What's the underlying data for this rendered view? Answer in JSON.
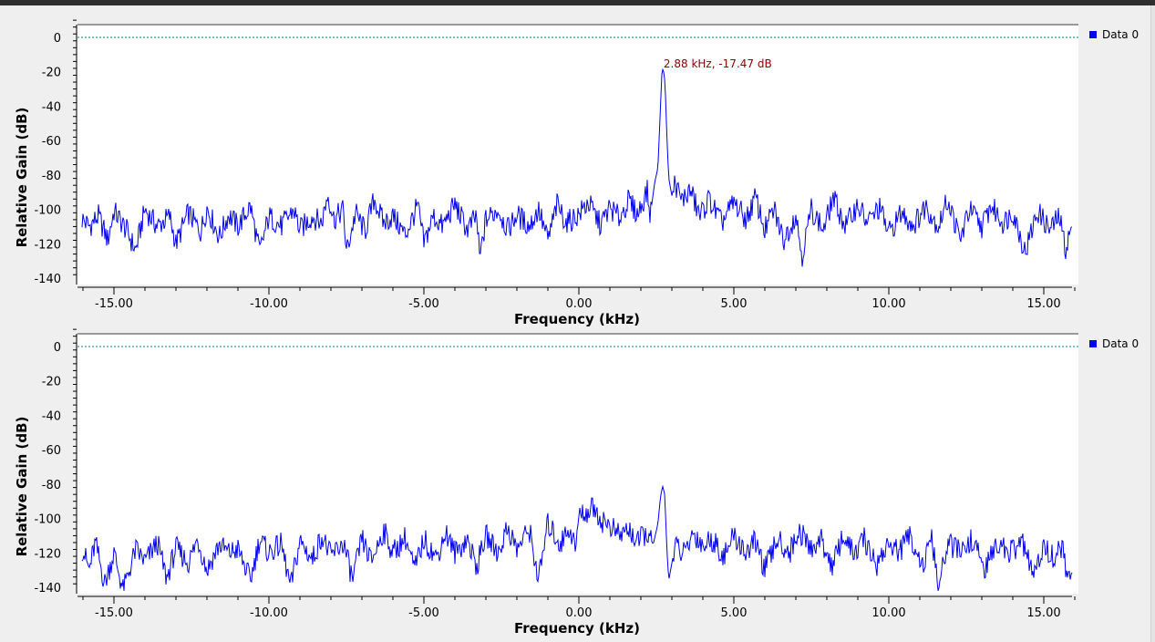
{
  "colors": {
    "series": "#0000ee",
    "reference_line": "#00808a",
    "marker": "#8b0000"
  },
  "chart_data": [
    {
      "type": "line",
      "xlabel": "Frequency (kHz)",
      "ylabel": "Relative Gain (dB)",
      "xlim": [
        -16,
        16
      ],
      "ylim": [
        -140,
        10
      ],
      "xticks": [
        "-15.00",
        "-10.00",
        "-5.00",
        "0.00",
        "5.00",
        "10.00",
        "15.00"
      ],
      "yticks": [
        "0",
        "-20",
        "-40",
        "-60",
        "-80",
        "-100",
        "-120",
        "-140"
      ],
      "legend": {
        "position": "right",
        "entries": [
          "Data 0"
        ]
      },
      "reference_line_y": 0,
      "marker": {
        "label": "2.88 kHz, -17.47 dB",
        "x": 2.88,
        "y": -17.47
      },
      "series": [
        {
          "name": "Data 0",
          "noise_floor_db": -106,
          "peak": {
            "x": 2.7,
            "y": -18
          },
          "values": [
            [
              -16.0,
              -106
            ],
            [
              -15.8,
              -110
            ],
            [
              -15.5,
              -104
            ],
            [
              -15.2,
              -118
            ],
            [
              -15.0,
              -101
            ],
            [
              -14.6,
              -112
            ],
            [
              -14.3,
              -124
            ],
            [
              -14.0,
              -100
            ],
            [
              -13.6,
              -110
            ],
            [
              -13.2,
              -104
            ],
            [
              -13.0,
              -120
            ],
            [
              -12.6,
              -102
            ],
            [
              -12.2,
              -113
            ],
            [
              -12.0,
              -99
            ],
            [
              -11.6,
              -116
            ],
            [
              -11.3,
              -103
            ],
            [
              -11.0,
              -110
            ],
            [
              -10.6,
              -98
            ],
            [
              -10.3,
              -125
            ],
            [
              -10.0,
              -104
            ],
            [
              -9.6,
              -110
            ],
            [
              -9.2,
              -100
            ],
            [
              -9.0,
              -112
            ],
            [
              -8.6,
              -104
            ],
            [
              -8.3,
              -108
            ],
            [
              -8.1,
              -91
            ],
            [
              -7.9,
              -106
            ],
            [
              -7.6,
              -100
            ],
            [
              -7.5,
              -125
            ],
            [
              -7.2,
              -102
            ],
            [
              -6.9,
              -113
            ],
            [
              -6.6,
              -94
            ],
            [
              -6.3,
              -108
            ],
            [
              -6.0,
              -104
            ],
            [
              -5.6,
              -115
            ],
            [
              -5.2,
              -98
            ],
            [
              -5.0,
              -120
            ],
            [
              -4.7,
              -104
            ],
            [
              -4.4,
              -110
            ],
            [
              -4.0,
              -97
            ],
            [
              -3.6,
              -112
            ],
            [
              -3.3,
              -104
            ],
            [
              -3.2,
              -129
            ],
            [
              -3.0,
              -106
            ],
            [
              -2.6,
              -100
            ],
            [
              -2.3,
              -112
            ],
            [
              -2.0,
              -103
            ],
            [
              -1.6,
              -110
            ],
            [
              -1.3,
              -100
            ],
            [
              -1.0,
              -118
            ],
            [
              -0.7,
              -97
            ],
            [
              -0.4,
              -108
            ],
            [
              0.0,
              -103
            ],
            [
              0.3,
              -96
            ],
            [
              0.7,
              -109
            ],
            [
              1.0,
              -99
            ],
            [
              1.3,
              -105
            ],
            [
              1.6,
              -95
            ],
            [
              1.9,
              -103
            ],
            [
              2.2,
              -89
            ],
            [
              2.3,
              -104
            ],
            [
              2.45,
              -84
            ],
            [
              2.55,
              -76
            ],
            [
              2.62,
              -46
            ],
            [
              2.68,
              -20
            ],
            [
              2.72,
              -18
            ],
            [
              2.78,
              -26
            ],
            [
              2.84,
              -58
            ],
            [
              2.9,
              -82
            ],
            [
              3.0,
              -92
            ],
            [
              3.1,
              -84
            ],
            [
              3.3,
              -95
            ],
            [
              3.6,
              -89
            ],
            [
              3.9,
              -104
            ],
            [
              4.2,
              -94
            ],
            [
              4.6,
              -108
            ],
            [
              5.0,
              -96
            ],
            [
              5.4,
              -106
            ],
            [
              5.7,
              -93
            ],
            [
              6.0,
              -112
            ],
            [
              6.3,
              -100
            ],
            [
              6.6,
              -118
            ],
            [
              7.0,
              -103
            ],
            [
              7.2,
              -127
            ],
            [
              7.5,
              -100
            ],
            [
              7.9,
              -112
            ],
            [
              8.2,
              -93
            ],
            [
              8.6,
              -110
            ],
            [
              9.0,
              -97
            ],
            [
              9.3,
              -108
            ],
            [
              9.7,
              -99
            ],
            [
              10.0,
              -114
            ],
            [
              10.4,
              -102
            ],
            [
              10.8,
              -109
            ],
            [
              11.2,
              -98
            ],
            [
              11.6,
              -110
            ],
            [
              11.9,
              -94
            ],
            [
              12.3,
              -118
            ],
            [
              12.6,
              -100
            ],
            [
              13.0,
              -110
            ],
            [
              13.3,
              -98
            ],
            [
              13.7,
              -108
            ],
            [
              14.0,
              -101
            ],
            [
              14.4,
              -125
            ],
            [
              14.8,
              -101
            ],
            [
              15.2,
              -112
            ],
            [
              15.5,
              -104
            ],
            [
              15.7,
              -123
            ],
            [
              16.0,
              -104
            ]
          ]
        }
      ]
    },
    {
      "type": "line",
      "xlabel": "Frequency (kHz)",
      "ylabel": "Relative Gain (dB)",
      "xlim": [
        -16,
        16
      ],
      "ylim": [
        -140,
        10
      ],
      "xticks": [
        "-15.00",
        "-10.00",
        "-5.00",
        "0.00",
        "5.00",
        "10.00",
        "15.00"
      ],
      "yticks": [
        "0",
        "-20",
        "-40",
        "-60",
        "-80",
        "-100",
        "-120",
        "-140"
      ],
      "legend": {
        "position": "right",
        "entries": [
          "Data 0"
        ]
      },
      "reference_line_y": 0,
      "series": [
        {
          "name": "Data 0",
          "noise_floor_db": -115,
          "peak": {
            "x": 2.7,
            "y": -82
          },
          "values": [
            [
              -16.0,
              -118
            ],
            [
              -15.8,
              -130
            ],
            [
              -15.6,
              -114
            ],
            [
              -15.3,
              -138
            ],
            [
              -15.0,
              -120
            ],
            [
              -14.7,
              -142
            ],
            [
              -14.3,
              -118
            ],
            [
              -14.0,
              -125
            ],
            [
              -13.6,
              -114
            ],
            [
              -13.3,
              -135
            ],
            [
              -13.0,
              -117
            ],
            [
              -12.6,
              -126
            ],
            [
              -12.3,
              -112
            ],
            [
              -12.0,
              -130
            ],
            [
              -11.6,
              -115
            ],
            [
              -11.3,
              -120
            ],
            [
              -11.0,
              -118
            ],
            [
              -10.6,
              -136
            ],
            [
              -10.3,
              -112
            ],
            [
              -10.0,
              -120
            ],
            [
              -9.6,
              -115
            ],
            [
              -9.3,
              -140
            ],
            [
              -9.0,
              -113
            ],
            [
              -8.6,
              -124
            ],
            [
              -8.3,
              -110
            ],
            [
              -8.0,
              -122
            ],
            [
              -7.6,
              -114
            ],
            [
              -7.3,
              -136
            ],
            [
              -7.0,
              -112
            ],
            [
              -6.7,
              -125
            ],
            [
              -6.3,
              -107
            ],
            [
              -6.0,
              -120
            ],
            [
              -5.6,
              -111
            ],
            [
              -5.3,
              -130
            ],
            [
              -5.0,
              -112
            ],
            [
              -4.6,
              -123
            ],
            [
              -4.3,
              -108
            ],
            [
              -4.0,
              -120
            ],
            [
              -3.6,
              -112
            ],
            [
              -3.3,
              -128
            ],
            [
              -3.0,
              -110
            ],
            [
              -2.6,
              -120
            ],
            [
              -2.3,
              -105
            ],
            [
              -2.0,
              -118
            ],
            [
              -1.6,
              -106
            ],
            [
              -1.3,
              -136
            ],
            [
              -1.0,
              -103
            ],
            [
              -0.6,
              -115
            ],
            [
              -0.3,
              -105
            ],
            [
              -0.1,
              -118
            ],
            [
              0.0,
              -98
            ],
            [
              0.3,
              -96
            ],
            [
              0.5,
              -93
            ],
            [
              0.7,
              -101
            ],
            [
              1.0,
              -104
            ],
            [
              1.3,
              -110
            ],
            [
              1.6,
              -106
            ],
            [
              1.9,
              -114
            ],
            [
              2.2,
              -108
            ],
            [
              2.4,
              -115
            ],
            [
              2.55,
              -103
            ],
            [
              2.63,
              -88
            ],
            [
              2.7,
              -81
            ],
            [
              2.77,
              -86
            ],
            [
              2.84,
              -118
            ],
            [
              2.9,
              -136
            ],
            [
              3.1,
              -116
            ],
            [
              3.4,
              -121
            ],
            [
              3.7,
              -108
            ],
            [
              4.0,
              -116
            ],
            [
              4.3,
              -112
            ],
            [
              4.7,
              -122
            ],
            [
              5.0,
              -110
            ],
            [
              5.4,
              -120
            ],
            [
              5.7,
              -113
            ],
            [
              6.0,
              -130
            ],
            [
              6.4,
              -112
            ],
            [
              6.8,
              -120
            ],
            [
              7.1,
              -107
            ],
            [
              7.5,
              -118
            ],
            [
              7.8,
              -112
            ],
            [
              8.2,
              -128
            ],
            [
              8.5,
              -110
            ],
            [
              8.9,
              -121
            ],
            [
              9.2,
              -112
            ],
            [
              9.6,
              -127
            ],
            [
              10.0,
              -114
            ],
            [
              10.3,
              -120
            ],
            [
              10.7,
              -110
            ],
            [
              11.1,
              -128
            ],
            [
              11.4,
              -112
            ],
            [
              11.6,
              -142
            ],
            [
              11.9,
              -114
            ],
            [
              12.3,
              -120
            ],
            [
              12.7,
              -112
            ],
            [
              13.1,
              -130
            ],
            [
              13.5,
              -114
            ],
            [
              13.9,
              -120
            ],
            [
              14.3,
              -114
            ],
            [
              14.7,
              -134
            ],
            [
              15.0,
              -116
            ],
            [
              15.3,
              -122
            ],
            [
              15.6,
              -117
            ],
            [
              15.8,
              -138
            ],
            [
              16.0,
              -124
            ]
          ]
        }
      ]
    }
  ]
}
